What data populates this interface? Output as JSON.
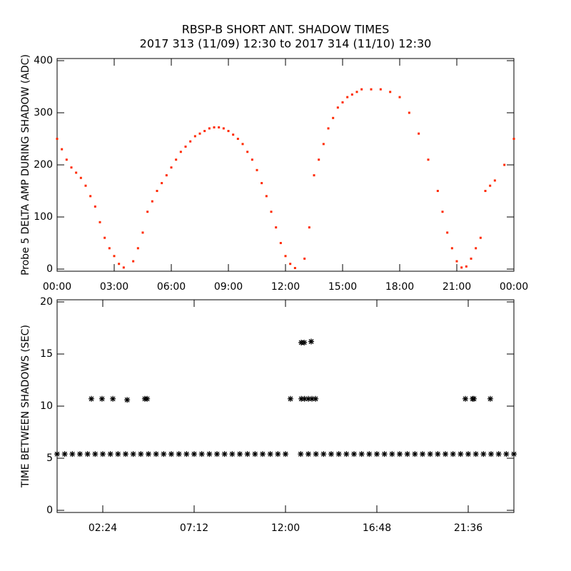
{
  "chart_data": [
    {
      "type": "scatter",
      "title": "RBSP-B SHORT ANT. SHADOW TIMES",
      "subtitle": "2017 313 (11/09) 12:30 to 2017 314 (11/10) 12:30",
      "y_label": "Probe 5 DELTA AMP DURING SHADOW (ADC)",
      "color": "#ff2a00",
      "xlim": [
        0,
        24
      ],
      "ylim": [
        0,
        400
      ],
      "xticks": [
        {
          "value": 0,
          "label": "00:00"
        },
        {
          "value": 3,
          "label": "03:00"
        },
        {
          "value": 6,
          "label": "06:00"
        },
        {
          "value": 9,
          "label": "09:00"
        },
        {
          "value": 12,
          "label": "12:00"
        },
        {
          "value": 15,
          "label": "15:00"
        },
        {
          "value": 18,
          "label": "18:00"
        },
        {
          "value": 21,
          "label": "21:00"
        },
        {
          "value": 24,
          "label": "00:00"
        }
      ],
      "yticks": [
        0,
        100,
        200,
        300,
        400
      ],
      "x": [
        0,
        0.25,
        0.5,
        0.75,
        1,
        1.25,
        1.5,
        1.75,
        2,
        2.25,
        2.5,
        2.75,
        3,
        3.25,
        3.5,
        4,
        4.25,
        4.5,
        4.75,
        5,
        5.25,
        5.5,
        5.75,
        6,
        6.25,
        6.5,
        6.75,
        7,
        7.25,
        7.5,
        7.75,
        8,
        8.25,
        8.5,
        8.75,
        9,
        9.25,
        9.5,
        9.75,
        10,
        10.25,
        10.5,
        10.75,
        11,
        11.25,
        11.5,
        11.75,
        12,
        12.25,
        12.5,
        13,
        13.25,
        13.5,
        13.75,
        14,
        14.25,
        14.5,
        14.75,
        15,
        15.25,
        15.5,
        15.75,
        16,
        16.5,
        17,
        17.5,
        18,
        18.5,
        19,
        19.5,
        20,
        20.25,
        20.5,
        20.75,
        21,
        21.25,
        21.5,
        21.75,
        22,
        22.25,
        22.5,
        22.75,
        23,
        23.5,
        24
      ],
      "y": [
        250,
        230,
        210,
        195,
        185,
        175,
        160,
        140,
        120,
        90,
        60,
        40,
        25,
        10,
        3,
        15,
        40,
        70,
        110,
        130,
        150,
        165,
        180,
        195,
        210,
        225,
        235,
        245,
        255,
        260,
        265,
        270,
        272,
        272,
        270,
        265,
        258,
        250,
        240,
        225,
        210,
        190,
        165,
        140,
        110,
        80,
        50,
        25,
        10,
        2,
        20,
        80,
        180,
        210,
        240,
        270,
        290,
        310,
        320,
        330,
        335,
        340,
        345,
        345,
        345,
        340,
        330,
        300,
        260,
        210,
        150,
        110,
        70,
        40,
        15,
        3,
        5,
        20,
        40,
        60,
        150,
        160,
        170,
        200,
        250
      ]
    },
    {
      "type": "scatter",
      "y_label": "TIME BETWEEN SHADOWS (SEC)",
      "color": "#000000",
      "xlim": [
        0,
        24
      ],
      "ylim": [
        0,
        20
      ],
      "xticks": [
        {
          "value": 2.4,
          "label": "02:24"
        },
        {
          "value": 7.2,
          "label": "07:12"
        },
        {
          "value": 12,
          "label": "12:00"
        },
        {
          "value": 16.8,
          "label": "16:48"
        },
        {
          "value": 21.6,
          "label": "21:36"
        }
      ],
      "yticks": [
        0,
        5,
        10,
        15,
        20
      ],
      "x": [
        0,
        0.4,
        0.8,
        1.2,
        1.6,
        2,
        2.4,
        2.8,
        3.2,
        3.6,
        4,
        4.4,
        4.8,
        5.2,
        5.6,
        6,
        6.4,
        6.8,
        7.2,
        7.6,
        8,
        8.4,
        8.8,
        9.2,
        9.6,
        10,
        10.4,
        10.8,
        11.2,
        11.6,
        12,
        12.8,
        13.2,
        13.6,
        14,
        14.4,
        14.8,
        15.2,
        15.6,
        16,
        16.4,
        16.8,
        17.2,
        17.6,
        18,
        18.4,
        18.8,
        19.2,
        19.6,
        20,
        20.4,
        20.8,
        21.2,
        21.6,
        22,
        22.4,
        22.8,
        23.2,
        23.6,
        24,
        1.8,
        2.36,
        2.93,
        3.68,
        4.61,
        4.73,
        12.26,
        12.83,
        13.0,
        13.2,
        13.39,
        13.58,
        21.45,
        21.83,
        21.9,
        22.76,
        12.83,
        12.98,
        13.35
      ],
      "y": [
        5.4,
        5.4,
        5.4,
        5.4,
        5.4,
        5.4,
        5.4,
        5.4,
        5.4,
        5.4,
        5.4,
        5.4,
        5.4,
        5.4,
        5.4,
        5.4,
        5.4,
        5.4,
        5.4,
        5.4,
        5.4,
        5.4,
        5.4,
        5.4,
        5.4,
        5.4,
        5.4,
        5.4,
        5.4,
        5.4,
        5.4,
        5.4,
        5.4,
        5.4,
        5.4,
        5.4,
        5.4,
        5.4,
        5.4,
        5.4,
        5.4,
        5.4,
        5.4,
        5.4,
        5.4,
        5.4,
        5.4,
        5.4,
        5.4,
        5.4,
        5.4,
        5.4,
        5.4,
        5.4,
        5.4,
        5.4,
        5.4,
        5.4,
        5.4,
        5.4,
        10.7,
        10.7,
        10.7,
        10.6,
        10.7,
        10.7,
        10.7,
        10.7,
        10.7,
        10.7,
        10.7,
        10.7,
        10.7,
        10.7,
        10.7,
        10.7,
        16.1,
        16.1,
        16.2
      ]
    }
  ]
}
